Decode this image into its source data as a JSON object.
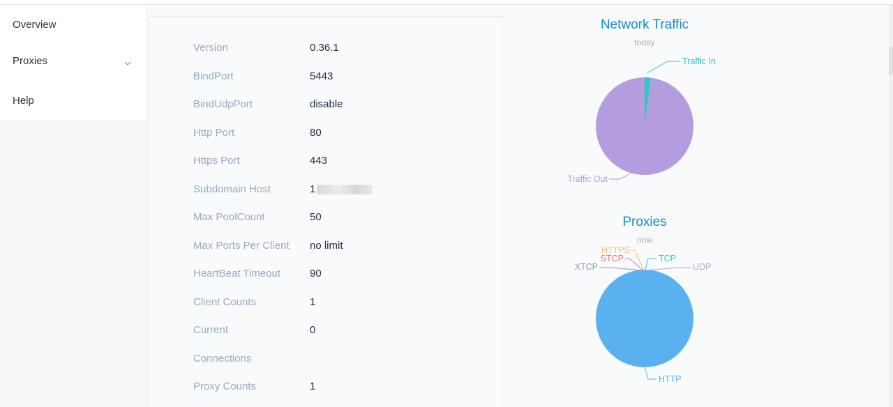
{
  "sidebar": {
    "items": [
      {
        "label": "Overview"
      },
      {
        "label": "Proxies"
      },
      {
        "label": "Help"
      }
    ]
  },
  "server_info": {
    "rows": [
      {
        "key": "Version",
        "value": "0.36.1"
      },
      {
        "key": "BindPort",
        "value": "5443"
      },
      {
        "key": "BindUdpPort",
        "value": "disable"
      },
      {
        "key": "Http Port",
        "value": "80"
      },
      {
        "key": "Https Port",
        "value": "443"
      },
      {
        "key": "Subdomain Host",
        "value": "1"
      },
      {
        "key": "Max PoolCount",
        "value": "50"
      },
      {
        "key": "Max Ports Per Client",
        "value": "no limit"
      },
      {
        "key": "HeartBeat Timeout",
        "value": "90"
      },
      {
        "key": "Client Counts",
        "value": "1"
      },
      {
        "key": "Current",
        "value": "0"
      },
      {
        "key": "Connections",
        "value": ""
      },
      {
        "key": "Proxy Counts",
        "value": "1"
      }
    ]
  },
  "colors": {
    "title": "#0e8fd1",
    "traffic_out": "#b39ddf",
    "traffic_in": "#2ec7c9",
    "http": "#5ab1ef",
    "https": "#ffb980",
    "stcp": "#d87a80",
    "tcp": "#2ec7c9",
    "udp": "#b6a2de",
    "xtcp": "#8d98b3"
  },
  "chart_data": [
    {
      "type": "pie",
      "title": "Network Traffic",
      "subtitle": "today",
      "categories": [
        "Traffic In",
        "Traffic Out"
      ],
      "values": [
        2,
        98
      ]
    },
    {
      "type": "pie",
      "title": "Proxies",
      "subtitle": "now",
      "categories": [
        "TCP",
        "UDP",
        "HTTP",
        "HTTPS",
        "STCP",
        "XTCP"
      ],
      "values": [
        0,
        0,
        1,
        0,
        0,
        0
      ]
    }
  ]
}
